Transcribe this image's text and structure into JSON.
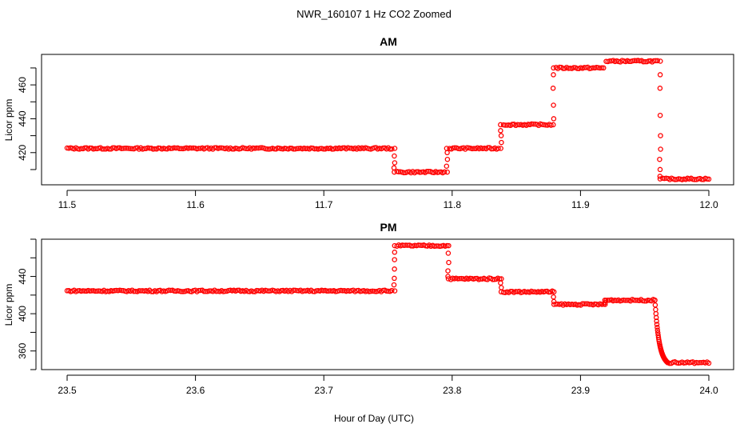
{
  "title": "NWR_160107  1 Hz CO2 Zoomed",
  "xlabel": "Hour of Day (UTC)",
  "chart_data": [
    {
      "type": "scatter",
      "title": "AM",
      "xlabel": "Hour of Day (UTC)",
      "ylabel": "Licor ppm",
      "xlim": [
        11.5,
        12.0
      ],
      "ylim": [
        401,
        478
      ],
      "x_ticks": [
        "11.5",
        "11.6",
        "11.7",
        "11.8",
        "11.9",
        "12.0"
      ],
      "y_ticks": [
        "420",
        "440",
        "460"
      ],
      "marker": "open-circle",
      "color": "#ff0000",
      "grid": false,
      "segments": [
        {
          "x0": 11.5,
          "x1": 11.753,
          "y": 422.5
        },
        {
          "x0": 11.757,
          "x1": 11.794,
          "y": 408.5
        },
        {
          "x0": 11.798,
          "x1": 11.836,
          "y": 422.5
        },
        {
          "x0": 11.84,
          "x1": 11.877,
          "y": 436.5
        },
        {
          "x0": 11.881,
          "x1": 11.918,
          "y": 470.0
        },
        {
          "x0": 11.92,
          "x1": 11.96,
          "y": 474.0
        },
        {
          "x0": 11.964,
          "x1": 12.0,
          "y": 404.5
        }
      ],
      "transitions": [
        {
          "x": 11.755,
          "y": [
            422.5,
            418,
            414,
            411,
            408.5
          ]
        },
        {
          "x": 11.796,
          "y": [
            408.5,
            412,
            416,
            420,
            422.5
          ]
        },
        {
          "x": 11.838,
          "y": [
            422.5,
            426,
            430,
            433,
            436.5
          ]
        },
        {
          "x": 11.879,
          "y": [
            436.5,
            440,
            448,
            458,
            466,
            470
          ]
        },
        {
          "x": 11.962,
          "y": [
            474,
            466,
            458,
            442,
            430,
            422,
            416,
            410,
            406,
            404.5
          ]
        }
      ]
    },
    {
      "type": "scatter",
      "title": "PM",
      "xlabel": "Hour of Day (UTC)",
      "ylabel": "Licor ppm",
      "xlim": [
        23.5,
        24.0
      ],
      "ylim": [
        340,
        480
      ],
      "x_ticks": [
        "23.5",
        "23.6",
        "23.7",
        "23.8",
        "23.9",
        "24.0"
      ],
      "y_ticks": [
        "360",
        "400",
        "440"
      ],
      "marker": "open-circle",
      "color": "#ff0000",
      "grid": false,
      "segments": [
        {
          "x0": 23.5,
          "x1": 23.753,
          "y": 424.5
        },
        {
          "x0": 23.757,
          "x1": 23.796,
          "y": 473.0
        },
        {
          "x0": 23.799,
          "x1": 23.837,
          "y": 437.5
        },
        {
          "x0": 23.84,
          "x1": 23.878,
          "y": 423.5
        },
        {
          "x0": 23.881,
          "x1": 23.918,
          "y": 410.0
        },
        {
          "x0": 23.92,
          "x1": 23.958,
          "y": 414.5
        },
        {
          "x0": 23.968,
          "x1": 24.0,
          "y": 347.5
        }
      ],
      "transitions": [
        {
          "x": 23.755,
          "y": [
            424.5,
            431,
            438,
            448,
            458,
            466,
            473
          ]
        },
        {
          "x": 23.797,
          "y": [
            473,
            465,
            455,
            446,
            440,
            437.5
          ]
        },
        {
          "x": 23.838,
          "y": [
            437.5,
            433,
            428,
            423.5
          ]
        },
        {
          "x": 23.879,
          "y": [
            423.5,
            418,
            413,
            410
          ]
        },
        {
          "x": 23.919,
          "y": [
            410,
            412,
            414.5
          ]
        }
      ],
      "decay": {
        "x0": 23.958,
        "x1": 23.968,
        "y0": 414.5,
        "y1": 347.5
      }
    }
  ]
}
